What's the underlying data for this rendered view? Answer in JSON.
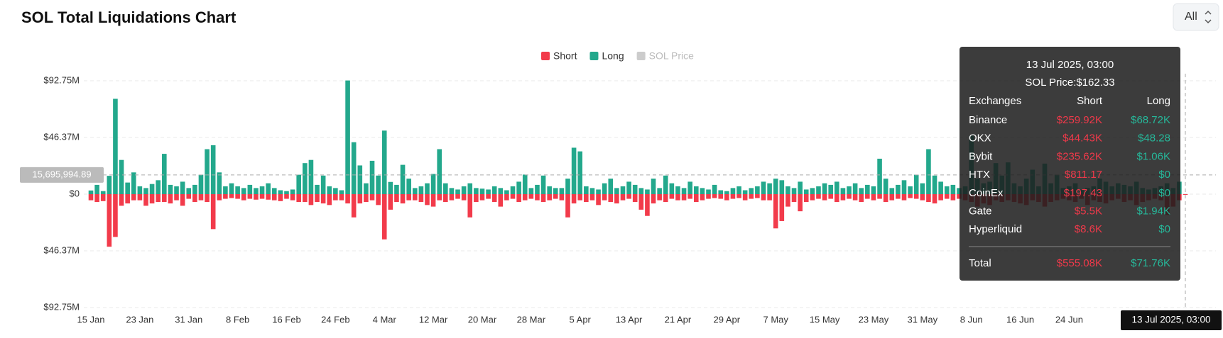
{
  "chart_data": {
    "type": "bar",
    "title": "SOL Total Liquidations Chart",
    "range_selector": "All",
    "categories": [
      "15 Jan",
      null,
      null,
      null,
      null,
      null,
      null,
      null,
      "23 Jan",
      null,
      null,
      null,
      null,
      null,
      null,
      null,
      "31 Jan",
      null,
      null,
      null,
      null,
      null,
      null,
      null,
      "8 Feb",
      null,
      null,
      null,
      null,
      null,
      null,
      null,
      "16 Feb",
      null,
      null,
      null,
      null,
      null,
      null,
      null,
      "24 Feb",
      null,
      null,
      null,
      null,
      null,
      null,
      null,
      "4 Mar",
      null,
      null,
      null,
      null,
      null,
      null,
      null,
      "12 Mar",
      null,
      null,
      null,
      null,
      null,
      null,
      null,
      "20 Mar",
      null,
      null,
      null,
      null,
      null,
      null,
      null,
      "28 Mar",
      null,
      null,
      null,
      null,
      null,
      null,
      null,
      "5 Apr",
      null,
      null,
      null,
      null,
      null,
      null,
      null,
      "13 Apr",
      null,
      null,
      null,
      null,
      null,
      null,
      null,
      "21 Apr",
      null,
      null,
      null,
      null,
      null,
      null,
      null,
      "29 Apr",
      null,
      null,
      null,
      null,
      null,
      null,
      null,
      "7 May",
      null,
      null,
      null,
      null,
      null,
      null,
      null,
      "15 May",
      null,
      null,
      null,
      null,
      null,
      null,
      null,
      "23 May",
      null,
      null,
      null,
      null,
      null,
      null,
      null,
      "31 May",
      null,
      null,
      null,
      null,
      null,
      null,
      null,
      "8 Jun",
      null,
      null,
      null,
      null,
      null,
      null,
      null,
      "16 Jun",
      null,
      null,
      null,
      null,
      null,
      null,
      null,
      "24 Jun",
      null,
      null,
      null,
      null,
      null,
      null,
      null,
      null,
      null,
      null,
      null,
      null,
      null,
      null,
      null,
      null,
      null,
      null,
      null
    ],
    "series": [
      {
        "name": "Short",
        "color": "#f23b4b",
        "values": [
          -5,
          -6.4,
          -5.7,
          -43,
          -35,
          -9.5,
          -7.6,
          -5,
          -5,
          -9.5,
          -7.6,
          -6.4,
          -6.4,
          -7.6,
          -5,
          -9.5,
          -3.8,
          -6.4,
          -5,
          -6.4,
          -28.6,
          -5,
          -3.8,
          -3.2,
          -3.8,
          -5,
          -3.8,
          -4.5,
          -3.8,
          -4.5,
          -5,
          -5.7,
          -3.8,
          -5,
          -6.4,
          -6.4,
          -8.9,
          -6.4,
          -7.6,
          -8.9,
          -5,
          -5,
          -7.6,
          -19,
          -7.6,
          -6.4,
          -5,
          -8.9,
          -37,
          -12.7,
          -6.4,
          -7.6,
          -5,
          -5,
          -6.4,
          -8.9,
          -10.2,
          -5,
          -6.4,
          -5,
          -3.8,
          -5,
          -19,
          -6.4,
          -5,
          -3.8,
          -6.4,
          -10.2,
          -5,
          -3.8,
          -6.4,
          -5,
          -3.8,
          -5,
          -6.4,
          -5,
          -3.8,
          -5,
          -19,
          -7.6,
          -5,
          -6.4,
          -5,
          -8.9,
          -5,
          -6.4,
          -7.6,
          -5,
          -3.8,
          -6.4,
          -12.7,
          -17.8,
          -7.6,
          -5,
          -6.4,
          -3.8,
          -5,
          -5,
          -3.8,
          -6.4,
          -5,
          -3.8,
          -3.2,
          -3.8,
          -5,
          -3.8,
          -3.2,
          -5,
          -3.8,
          -3.2,
          -5,
          -5,
          -28,
          -22,
          -10.2,
          -6.4,
          -14,
          -6.4,
          -5,
          -3.8,
          -5,
          -3.8,
          -6.4,
          -5,
          -3.8,
          -5,
          -6.4,
          -3.8,
          -5,
          -3.8,
          -6.4,
          -5,
          -3.8,
          -5,
          -3.2,
          -3.8,
          -5,
          -6.4,
          -7.6,
          -5,
          -3.8,
          -5,
          -3.8,
          -5,
          -6.4,
          -10.2,
          -7.6,
          -8.9,
          -5,
          -6.4,
          -5,
          -6.4,
          -7.6,
          -8.9,
          -5,
          -6.4,
          -10.2,
          -6.4,
          -5,
          -3.8,
          -5,
          -6.4,
          -3.8,
          -8.9,
          -5,
          -6.4,
          -7.6,
          -5,
          -3.8,
          -6.4,
          -5,
          -8.9,
          -6.4,
          -5,
          -3.8,
          -5,
          -17,
          -10.2,
          -5,
          -0.55508
        ]
      },
      {
        "name": "Long",
        "color": "#23a88c",
        "values": [
          3,
          7.6,
          2.5,
          15,
          78,
          28,
          9.5,
          17.8,
          6.4,
          5,
          8.3,
          11.4,
          33,
          7.6,
          6.4,
          10.2,
          5,
          7.6,
          15.9,
          36.8,
          40,
          17.8,
          6.4,
          8.9,
          6.4,
          5,
          7.6,
          5,
          6.4,
          8.9,
          5,
          3.2,
          2.5,
          3.8,
          15.9,
          25.4,
          28,
          7.6,
          15.2,
          6.4,
          5,
          3.2,
          93,
          42.5,
          23.5,
          8.9,
          27.3,
          15.2,
          52,
          10,
          7.6,
          24,
          12.7,
          5,
          6.4,
          8.9,
          16.5,
          36.8,
          8.9,
          5,
          3.8,
          6.4,
          8.9,
          5,
          4.5,
          3.8,
          6.4,
          5,
          3.2,
          6.4,
          10.2,
          16,
          5,
          7.6,
          15.2,
          6.4,
          5,
          5,
          12.7,
          38,
          35,
          6.4,
          5,
          3.8,
          8.9,
          12.7,
          5,
          6.4,
          10.2,
          7.6,
          5,
          3.8,
          12.7,
          5,
          15.2,
          8.9,
          6.4,
          5,
          10.2,
          6.4,
          5,
          3.8,
          7.6,
          3.2,
          2.5,
          5,
          6.4,
          3.2,
          5,
          6.4,
          10.2,
          8.9,
          12.7,
          11.4,
          6.4,
          5,
          10.2,
          3.8,
          5,
          6.4,
          8.9,
          7.6,
          10.2,
          5,
          6.4,
          8.9,
          5,
          7.6,
          6.4,
          29,
          12.7,
          5,
          7.6,
          11.4,
          6.4,
          15.9,
          8.9,
          36.8,
          15.2,
          10.2,
          6.4,
          7.6,
          5,
          6.4,
          48,
          12.7,
          8.9,
          10.2,
          25.4,
          15.2,
          26,
          8.9,
          6.4,
          12.7,
          20,
          6.4,
          25,
          8.9,
          15.9,
          5,
          6.4,
          8.9,
          3.8,
          5,
          6.4,
          12.7,
          10.2,
          6.4,
          8.9,
          7.6,
          6.4,
          10.2,
          5,
          3.8,
          5,
          6.4,
          8.9,
          5,
          10.2,
          0.07176
        ]
      },
      {
        "name": "SOL Price",
        "color": "#cccccc",
        "visible": false
      }
    ],
    "ylim": [
      -92.75,
      92.75
    ],
    "yticks": [
      {
        "value": 92.75,
        "label": "$92.75M"
      },
      {
        "value": 46.37,
        "label": "$46.37M"
      },
      {
        "value": 0,
        "label": "$0"
      },
      {
        "value": -46.37,
        "label": "$46.37M"
      },
      {
        "value": -92.75,
        "label": "$92.75M"
      }
    ],
    "grid": true,
    "crosshair": {
      "value": 15.69599489,
      "label": "15,695,994.89",
      "x_label": "13 Jul 2025, 03:00"
    },
    "tooltip": {
      "title": "13 Jul 2025, 03:00",
      "price": "SOL Price:$162.33",
      "header": [
        "Exchanges",
        "Short",
        "Long"
      ],
      "rows": [
        [
          "Binance",
          "$259.92K",
          "$68.72K"
        ],
        [
          "OKX",
          "$44.43K",
          "$48.28"
        ],
        [
          "Bybit",
          "$235.62K",
          "$1.06K"
        ],
        [
          "HTX",
          "$811.17",
          "$0"
        ],
        [
          "CoinEx",
          "$197.43",
          "$0"
        ],
        [
          "Gate",
          "$5.5K",
          "$1.94K"
        ],
        [
          "Hyperliquid",
          "$8.6K",
          "$0"
        ]
      ],
      "total": [
        "Total",
        "$555.08K",
        "$71.76K"
      ]
    }
  }
}
